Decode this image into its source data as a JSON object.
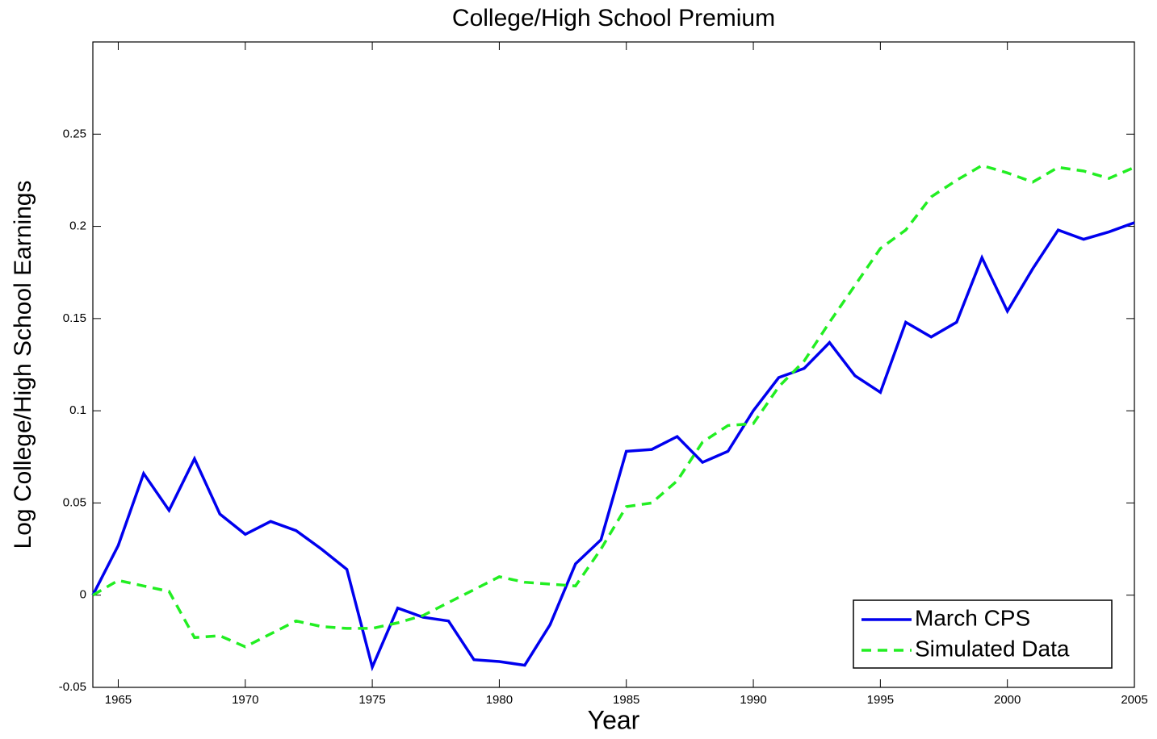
{
  "chart_data": {
    "type": "line",
    "title": "College/High School Premium",
    "x_label": "Year",
    "y_label": "Log College/High School Earnings",
    "x": [
      1964,
      1965,
      1966,
      1967,
      1968,
      1969,
      1970,
      1971,
      1972,
      1973,
      1974,
      1975,
      1976,
      1977,
      1978,
      1979,
      1980,
      1981,
      1982,
      1983,
      1984,
      1985,
      1986,
      1987,
      1988,
      1989,
      1990,
      1991,
      1992,
      1993,
      1994,
      1995,
      1996,
      1997,
      1998,
      1999,
      2000,
      2001,
      2002,
      2003,
      2004,
      2005
    ],
    "series": [
      {
        "name": "March CPS",
        "color": "#0000ee",
        "dash": "solid",
        "values": [
          0,
          0.027,
          0.066,
          0.046,
          0.074,
          0.044,
          0.033,
          0.04,
          0.035,
          0.025,
          0.014,
          -0.039,
          -0.007,
          -0.012,
          -0.014,
          -0.035,
          -0.036,
          -0.038,
          -0.016,
          0.017,
          0.03,
          0.078,
          0.079,
          0.086,
          0.072,
          0.078,
          0.1,
          0.118,
          0.123,
          0.137,
          0.119,
          0.11,
          0.148,
          0.14,
          0.148,
          0.183,
          0.154,
          0.177,
          0.198,
          0.193,
          0.197,
          0.202
        ]
      },
      {
        "name": "Simulated Data",
        "color": "#22ee22",
        "dash": "dashed",
        "values": [
          0,
          0.008,
          0.005,
          0.002,
          -0.023,
          -0.022,
          -0.028,
          -0.021,
          -0.014,
          -0.017,
          -0.018,
          -0.018,
          -0.015,
          -0.011,
          -0.004,
          0.003,
          0.01,
          0.007,
          0.006,
          0.005,
          0.025,
          0.048,
          0.05,
          0.062,
          0.083,
          0.092,
          0.093,
          0.113,
          0.127,
          0.148,
          0.168,
          0.188,
          0.198,
          0.216,
          0.225,
          0.233,
          0.229,
          0.224,
          0.232,
          0.23,
          0.226,
          0.232
        ]
      }
    ],
    "xlim": [
      1964,
      2005
    ],
    "xticks": [
      1965,
      1970,
      1975,
      1980,
      1985,
      1990,
      1995,
      2000,
      2005
    ],
    "ylim": [
      -0.05,
      0.3
    ],
    "yticks": [
      -0.05,
      0,
      0.05,
      0.1,
      0.15,
      0.2,
      0.25
    ],
    "grid": false,
    "legend": "lower right"
  }
}
